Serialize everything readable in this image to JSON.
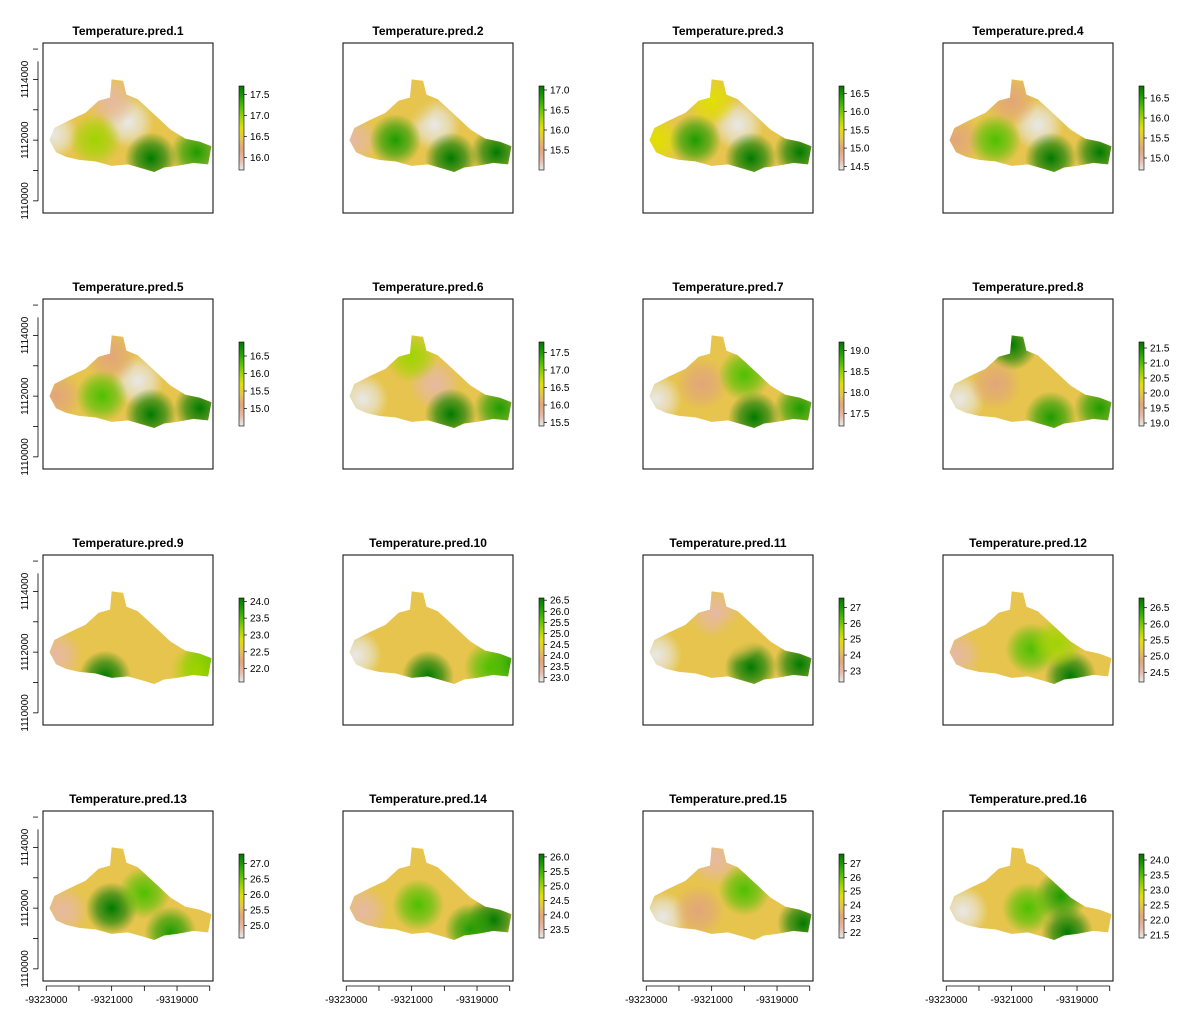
{
  "figure": {
    "layout": "4x4 grid of raster maps with color legends",
    "palette": [
      "#e8e8e8",
      "#e6b9a3",
      "#e2a67a",
      "#e6c44d",
      "#e0e000",
      "#9fd400",
      "#4fc000",
      "#1e9c00",
      "#007a00"
    ]
  },
  "chart_data": [
    {
      "type": "heatmap",
      "title": "Temperature.pred.1",
      "legend_ticks": [
        "17.5",
        "17.0",
        "16.5",
        "16.0"
      ],
      "value_range": [
        15.7,
        17.7
      ],
      "hotspots": [
        {
          "x": -9320500,
          "y": 1112600,
          "v": 15.75
        },
        {
          "x": -9322800,
          "y": 1112200,
          "v": 15.8
        },
        {
          "x": -9321000,
          "y": 1113300,
          "v": 16.0
        },
        {
          "x": -9319800,
          "y": 1111400,
          "v": 17.7
        },
        {
          "x": -9318400,
          "y": 1111600,
          "v": 17.5
        },
        {
          "x": -9321500,
          "y": 1112000,
          "v": 17.0
        }
      ]
    },
    {
      "type": "heatmap",
      "title": "Temperature.pred.2",
      "legend_ticks": [
        "17.0",
        "16.5",
        "16.0",
        "15.5"
      ],
      "value_range": [
        15.0,
        17.1
      ],
      "hotspots": [
        {
          "x": -9320300,
          "y": 1112500,
          "v": 15.0
        },
        {
          "x": -9322800,
          "y": 1112000,
          "v": 15.3
        },
        {
          "x": -9321000,
          "y": 1113300,
          "v": 15.8
        },
        {
          "x": -9319800,
          "y": 1111400,
          "v": 17.0
        },
        {
          "x": -9318400,
          "y": 1111600,
          "v": 17.0
        },
        {
          "x": -9321500,
          "y": 1112000,
          "v": 16.8
        }
      ]
    },
    {
      "type": "heatmap",
      "title": "Temperature.pred.3",
      "legend_ticks": [
        "16.5",
        "16.0",
        "15.5",
        "15.0",
        "14.5"
      ],
      "value_range": [
        14.4,
        16.7
      ],
      "hotspots": [
        {
          "x": -9320200,
          "y": 1112500,
          "v": 14.4
        },
        {
          "x": -9322700,
          "y": 1112000,
          "v": 15.6
        },
        {
          "x": -9321000,
          "y": 1113300,
          "v": 15.5
        },
        {
          "x": -9319800,
          "y": 1111400,
          "v": 16.7
        },
        {
          "x": -9318300,
          "y": 1111600,
          "v": 16.6
        },
        {
          "x": -9321500,
          "y": 1112000,
          "v": 16.4
        }
      ]
    },
    {
      "type": "heatmap",
      "title": "Temperature.pred.4",
      "legend_ticks": [
        "16.5",
        "16.0",
        "15.5",
        "15.0"
      ],
      "value_range": [
        14.7,
        16.8
      ],
      "hotspots": [
        {
          "x": -9320200,
          "y": 1112500,
          "v": 14.7
        },
        {
          "x": -9322700,
          "y": 1112000,
          "v": 15.2
        },
        {
          "x": -9321000,
          "y": 1113300,
          "v": 15.2
        },
        {
          "x": -9319800,
          "y": 1111400,
          "v": 16.8
        },
        {
          "x": -9318300,
          "y": 1111600,
          "v": 16.7
        },
        {
          "x": -9321500,
          "y": 1112000,
          "v": 16.2
        }
      ]
    },
    {
      "type": "heatmap",
      "title": "Temperature.pred.5",
      "legend_ticks": [
        "16.5",
        "16.0",
        "15.5",
        "15.0"
      ],
      "value_range": [
        14.5,
        16.9
      ],
      "hotspots": [
        {
          "x": -9320200,
          "y": 1112500,
          "v": 14.5
        },
        {
          "x": -9322700,
          "y": 1112000,
          "v": 15.0
        },
        {
          "x": -9321000,
          "y": 1113300,
          "v": 15.0
        },
        {
          "x": -9319800,
          "y": 1111400,
          "v": 16.9
        },
        {
          "x": -9318300,
          "y": 1111600,
          "v": 16.8
        },
        {
          "x": -9321300,
          "y": 1112000,
          "v": 16.4
        }
      ]
    },
    {
      "type": "heatmap",
      "title": "Temperature.pred.6",
      "legend_ticks": [
        "17.5",
        "17.0",
        "16.5",
        "16.0",
        "15.5"
      ],
      "value_range": [
        15.4,
        17.8
      ],
      "hotspots": [
        {
          "x": -9322500,
          "y": 1111900,
          "v": 15.4
        },
        {
          "x": -9320300,
          "y": 1112400,
          "v": 15.7
        },
        {
          "x": -9319800,
          "y": 1111400,
          "v": 17.8
        },
        {
          "x": -9318300,
          "y": 1111600,
          "v": 17.6
        },
        {
          "x": -9321000,
          "y": 1113300,
          "v": 16.8
        }
      ]
    },
    {
      "type": "heatmap",
      "title": "Temperature.pred.7",
      "legend_ticks": [
        "19.0",
        "18.5",
        "18.0",
        "17.5"
      ],
      "value_range": [
        17.2,
        19.2
      ],
      "hotspots": [
        {
          "x": -9322700,
          "y": 1111900,
          "v": 17.2
        },
        {
          "x": -9321300,
          "y": 1112400,
          "v": 17.6
        },
        {
          "x": -9319700,
          "y": 1111300,
          "v": 19.1
        },
        {
          "x": -9318300,
          "y": 1111600,
          "v": 19.0
        },
        {
          "x": -9320000,
          "y": 1112700,
          "v": 18.6
        }
      ]
    },
    {
      "type": "heatmap",
      "title": "Temperature.pred.8",
      "legend_ticks": [
        "21.5",
        "21.0",
        "20.5",
        "20.0",
        "19.5",
        "19.0"
      ],
      "value_range": [
        18.9,
        21.7
      ],
      "hotspots": [
        {
          "x": -9322600,
          "y": 1111900,
          "v": 18.9
        },
        {
          "x": -9321000,
          "y": 1113700,
          "v": 21.7
        },
        {
          "x": -9319800,
          "y": 1111300,
          "v": 21.2
        },
        {
          "x": -9318300,
          "y": 1111600,
          "v": 21.2
        },
        {
          "x": -9321500,
          "y": 1112400,
          "v": 19.6
        }
      ]
    },
    {
      "type": "heatmap",
      "title": "Temperature.pred.9",
      "legend_ticks": [
        "24.0",
        "23.5",
        "23.0",
        "22.5",
        "22.0"
      ],
      "value_range": [
        21.6,
        24.1
      ],
      "hotspots": [
        {
          "x": -9321200,
          "y": 1111200,
          "v": 24.1
        },
        {
          "x": -9318100,
          "y": 1111600,
          "v": 23.6
        },
        {
          "x": -9318400,
          "y": 1111400,
          "v": 23.3
        },
        {
          "x": -9322700,
          "y": 1111900,
          "v": 22.0
        }
      ]
    },
    {
      "type": "heatmap",
      "title": "Temperature.pred.10",
      "legend_ticks": [
        "26.5",
        "26.0",
        "25.5",
        "25.0",
        "24.5",
        "24.0",
        "23.5",
        "23.0"
      ],
      "value_range": [
        22.8,
        26.6
      ],
      "hotspots": [
        {
          "x": -9320500,
          "y": 1111200,
          "v": 26.6
        },
        {
          "x": -9318000,
          "y": 1111600,
          "v": 26.2
        },
        {
          "x": -9318600,
          "y": 1111500,
          "v": 25.6
        },
        {
          "x": -9322700,
          "y": 1111900,
          "v": 22.9
        }
      ]
    },
    {
      "type": "heatmap",
      "title": "Temperature.pred.11",
      "legend_ticks": [
        "27",
        "26",
        "25",
        "24",
        "23"
      ],
      "value_range": [
        22.3,
        27.6
      ],
      "hotspots": [
        {
          "x": -9322700,
          "y": 1111900,
          "v": 22.4
        },
        {
          "x": -9320900,
          "y": 1113300,
          "v": 22.8
        },
        {
          "x": -9319800,
          "y": 1111500,
          "v": 27.5
        },
        {
          "x": -9318300,
          "y": 1111600,
          "v": 27.4
        },
        {
          "x": -9320200,
          "y": 1112500,
          "v": 24.2
        }
      ]
    },
    {
      "type": "heatmap",
      "title": "Temperature.pred.12",
      "legend_ticks": [
        "26.5",
        "26.0",
        "25.5",
        "25.0",
        "24.5"
      ],
      "value_range": [
        24.2,
        26.8
      ],
      "hotspots": [
        {
          "x": -9319200,
          "y": 1111200,
          "v": 26.8
        },
        {
          "x": -9320400,
          "y": 1112100,
          "v": 26.0
        },
        {
          "x": -9319600,
          "y": 1112300,
          "v": 25.8
        },
        {
          "x": -9322700,
          "y": 1111900,
          "v": 24.6
        }
      ]
    },
    {
      "type": "heatmap",
      "title": "Temperature.pred.13",
      "legend_ticks": [
        "27.0",
        "26.5",
        "26.0",
        "25.5",
        "25.0"
      ],
      "value_range": [
        24.6,
        27.3
      ],
      "hotspots": [
        {
          "x": -9321000,
          "y": 1112000,
          "v": 27.3
        },
        {
          "x": -9319200,
          "y": 1111200,
          "v": 27.0
        },
        {
          "x": -9320000,
          "y": 1112500,
          "v": 26.5
        },
        {
          "x": -9322500,
          "y": 1111900,
          "v": 24.8
        }
      ]
    },
    {
      "type": "heatmap",
      "title": "Temperature.pred.14",
      "legend_ticks": [
        "26.0",
        "25.5",
        "25.0",
        "24.5",
        "24.0",
        "23.5"
      ],
      "value_range": [
        23.2,
        26.1
      ],
      "hotspots": [
        {
          "x": -9318500,
          "y": 1111600,
          "v": 26.1
        },
        {
          "x": -9319200,
          "y": 1111300,
          "v": 25.8
        },
        {
          "x": -9320800,
          "y": 1112100,
          "v": 25.3
        },
        {
          "x": -9322500,
          "y": 1111900,
          "v": 23.4
        }
      ]
    },
    {
      "type": "heatmap",
      "title": "Temperature.pred.15",
      "legend_ticks": [
        "27",
        "26",
        "25",
        "24",
        "23",
        "22"
      ],
      "value_range": [
        21.6,
        27.7
      ],
      "hotspots": [
        {
          "x": -9322500,
          "y": 1111700,
          "v": 21.7
        },
        {
          "x": -9320900,
          "y": 1113600,
          "v": 22.0
        },
        {
          "x": -9320000,
          "y": 1112600,
          "v": 25.8
        },
        {
          "x": -9318200,
          "y": 1111500,
          "v": 27.6
        },
        {
          "x": -9321400,
          "y": 1111900,
          "v": 22.9
        }
      ]
    },
    {
      "type": "heatmap",
      "title": "Temperature.pred.16",
      "legend_ticks": [
        "24.0",
        "23.5",
        "23.0",
        "22.5",
        "22.0",
        "21.5"
      ],
      "value_range": [
        21.4,
        24.2
      ],
      "hotspots": [
        {
          "x": -9319300,
          "y": 1111200,
          "v": 24.2
        },
        {
          "x": -9319500,
          "y": 1112400,
          "v": 23.9
        },
        {
          "x": -9320500,
          "y": 1112000,
          "v": 23.6
        },
        {
          "x": -9322500,
          "y": 1111900,
          "v": 21.5
        }
      ]
    }
  ],
  "axes": {
    "x_ticks": [
      -9323000,
      -9321000,
      -9319000
    ],
    "y_ticks": [
      1110000,
      1112000,
      1114000
    ],
    "x_tick_labels": [
      "-9323000",
      "-9321000",
      "-9319000"
    ],
    "y_tick_labels": [
      "1110000",
      "1112000",
      "1114000"
    ]
  }
}
